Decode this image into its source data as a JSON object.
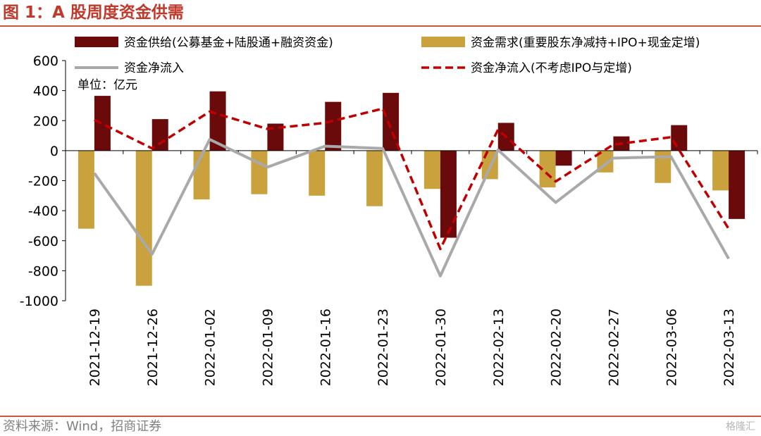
{
  "figure": {
    "title": "图 1：A 股周度资金供需",
    "source": "资料来源：Wind，招商证券",
    "watermark": "格隆汇"
  },
  "chart_data": {
    "type": "bar",
    "unit_label": "单位：亿元",
    "categories": [
      "2021-12-19",
      "2021-12-26",
      "2022-01-02",
      "2022-01-09",
      "2022-01-16",
      "2022-01-23",
      "2022-01-30",
      "2022-02-13",
      "2022-02-20",
      "2022-02-27",
      "2022-03-06",
      "2022-03-13"
    ],
    "ylim": [
      -1000,
      600
    ],
    "yticks": [
      "600",
      "400",
      "200",
      "0",
      "-200",
      "-400",
      "-600",
      "-800",
      "-1000"
    ],
    "grid": false,
    "legend_position": "top",
    "series": [
      {
        "name": "资金需求(重要股东净减持+IPO+现金定增)",
        "kind": "bar",
        "color": "#c9a23e",
        "values": [
          -520,
          -900,
          -325,
          -290,
          -300,
          -370,
          -255,
          -190,
          -245,
          -145,
          -215,
          -265
        ]
      },
      {
        "name": "资金供给(公募基金+陆股通+融资资金)",
        "kind": "bar",
        "color": "#6b0a0a",
        "values": [
          365,
          210,
          395,
          180,
          325,
          385,
          -580,
          185,
          -100,
          95,
          170,
          -455
        ]
      },
      {
        "name": "资金净流入",
        "kind": "line",
        "color": "#a9a9a9",
        "values": [
          -150,
          -690,
          75,
          -110,
          30,
          15,
          -835,
          5,
          -345,
          -50,
          -40,
          -720
        ]
      },
      {
        "name": "资金净流入(不考虑IPO与定增)",
        "kind": "dashed-line",
        "color": "#c00000",
        "values": [
          205,
          15,
          260,
          145,
          185,
          280,
          -655,
          140,
          -205,
          40,
          90,
          -520
        ]
      }
    ]
  }
}
